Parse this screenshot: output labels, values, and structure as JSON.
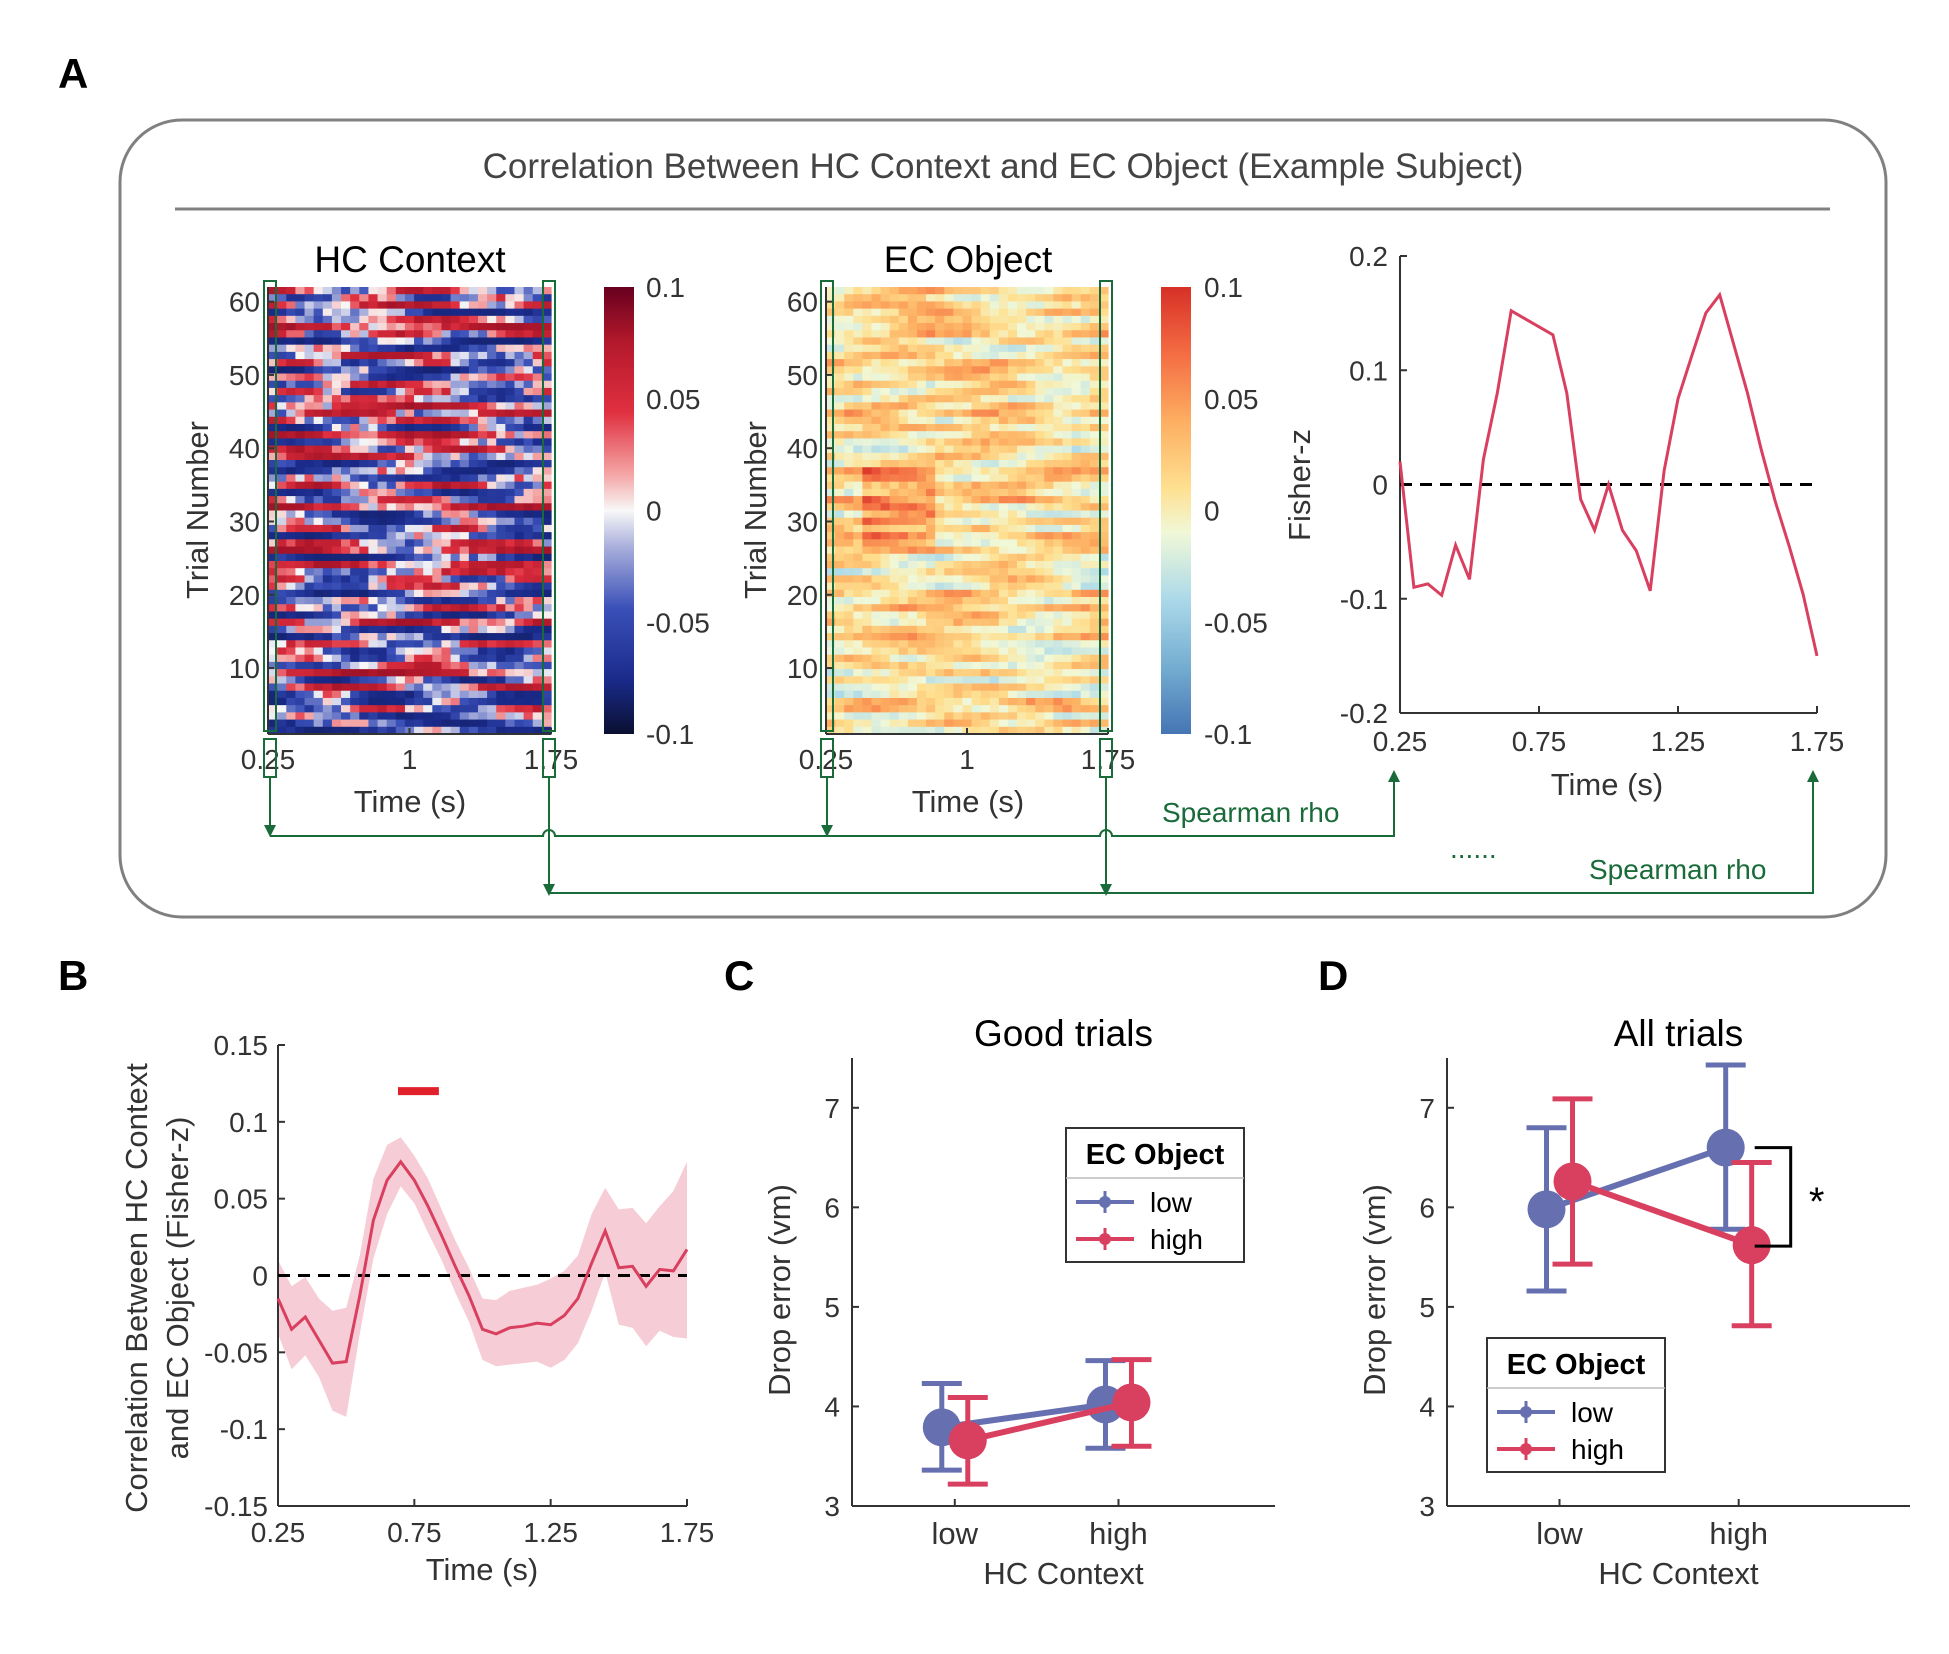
{
  "colors": {
    "blue": "#6670b0",
    "red": "#d94060",
    "shade": "#f6cdd6",
    "green": "#1a6b3a",
    "grey": "#777777",
    "sig": "#e0202a"
  },
  "panel_labels": {
    "a": "A",
    "b": "B",
    "c": "C",
    "d": "D"
  },
  "panel_a": {
    "box_title": "Correlation Between HC Context and EC Object (Example Subject)",
    "hc_title": "HC Context",
    "ec_title": "EC Object",
    "ylabel": "Trial Number",
    "xlabel": "Time (s)",
    "y_ticks": [
      "60",
      "50",
      "40",
      "30",
      "20",
      "10"
    ],
    "x_ticks": [
      "0.25",
      "1",
      "1.75"
    ],
    "colorbar_ticks": [
      "0.1",
      "0.05",
      "0",
      "-0.05",
      "-0.1"
    ],
    "spearman_label_1": "Spearman rho",
    "spearman_label_2": "Spearman rho",
    "ellipsis": "......"
  },
  "chart_data": [
    {
      "id": "A-right",
      "type": "line",
      "ylabel": "Fisher-z",
      "xlabel": "Time (s)",
      "xlim": [
        0.25,
        1.75
      ],
      "ylim": [
        -0.2,
        0.2
      ],
      "x_ticks": [
        "0.25",
        "0.75",
        "1.25",
        "1.75"
      ],
      "y_ticks": [
        "0.2",
        "0.1",
        "0",
        "-0.1",
        "-0.2"
      ],
      "x": [
        0.25,
        0.3,
        0.35,
        0.4,
        0.45,
        0.5,
        0.55,
        0.6,
        0.65,
        0.7,
        0.75,
        0.8,
        0.85,
        0.9,
        0.95,
        1.0,
        1.05,
        1.1,
        1.15,
        1.2,
        1.25,
        1.3,
        1.35,
        1.4,
        1.45,
        1.5,
        1.55,
        1.6,
        1.65,
        1.7,
        1.75
      ],
      "y": [
        0.02,
        -0.09,
        -0.087,
        -0.097,
        -0.053,
        -0.083,
        0.022,
        0.08,
        0.152,
        0.145,
        0.138,
        0.131,
        0.08,
        -0.013,
        -0.04,
        0.0,
        -0.04,
        -0.058,
        -0.093,
        0.012,
        0.075,
        0.113,
        0.15,
        0.166,
        0.123,
        0.08,
        0.03,
        -0.015,
        -0.054,
        -0.096,
        -0.15
      ],
      "zero_line": true
    },
    {
      "id": "B",
      "type": "line",
      "ylabel_line1": "Correlation Between HC Context",
      "ylabel_line2": "and EC Object (Fisher-z)",
      "xlabel": "Time (s)",
      "xlim": [
        0.25,
        1.75
      ],
      "ylim": [
        -0.15,
        0.15
      ],
      "x_ticks": [
        "0.25",
        "0.75",
        "1.25",
        "1.75"
      ],
      "y_ticks": [
        "0.15",
        "0.1",
        "0.05",
        "0",
        "-0.05",
        "-0.1",
        "-0.15"
      ],
      "x": [
        0.25,
        0.3,
        0.35,
        0.4,
        0.45,
        0.5,
        0.55,
        0.6,
        0.65,
        0.7,
        0.75,
        0.8,
        0.85,
        0.9,
        0.95,
        1.0,
        1.05,
        1.1,
        1.15,
        1.2,
        1.25,
        1.3,
        1.35,
        1.4,
        1.45,
        1.5,
        1.55,
        1.6,
        1.65,
        1.7,
        1.75
      ],
      "mean": [
        -0.015,
        -0.035,
        -0.027,
        -0.042,
        -0.057,
        -0.056,
        -0.013,
        0.036,
        0.062,
        0.074,
        0.062,
        0.045,
        0.026,
        0.006,
        -0.013,
        -0.035,
        -0.038,
        -0.034,
        -0.033,
        -0.031,
        -0.032,
        -0.026,
        -0.015,
        0.008,
        0.029,
        0.005,
        0.006,
        -0.007,
        0.004,
        0.003,
        0.017
      ],
      "upper": [
        0.01,
        -0.007,
        -0.001,
        -0.015,
        -0.023,
        -0.021,
        0.013,
        0.063,
        0.085,
        0.09,
        0.078,
        0.063,
        0.043,
        0.023,
        0.005,
        -0.015,
        -0.016,
        -0.01,
        -0.008,
        -0.006,
        -0.002,
        0.003,
        0.013,
        0.04,
        0.057,
        0.043,
        0.044,
        0.034,
        0.045,
        0.055,
        0.074
      ],
      "lower": [
        -0.038,
        -0.061,
        -0.052,
        -0.066,
        -0.088,
        -0.092,
        -0.038,
        0.011,
        0.04,
        0.058,
        0.047,
        0.028,
        0.01,
        -0.011,
        -0.03,
        -0.055,
        -0.059,
        -0.058,
        -0.057,
        -0.056,
        -0.06,
        -0.055,
        -0.044,
        -0.023,
        0.002,
        -0.032,
        -0.034,
        -0.046,
        -0.036,
        -0.04,
        -0.041
      ],
      "significance": {
        "x_start": 0.69,
        "x_end": 0.84,
        "y": 0.12
      },
      "zero_line": true
    },
    {
      "id": "C",
      "type": "line",
      "title": "Good trials",
      "xlabel": "HC Context",
      "ylabel": "Drop error (vm)",
      "categories": [
        "low",
        "high"
      ],
      "ylim": [
        3,
        7.5
      ],
      "y_ticks": [
        "7",
        "6",
        "5",
        "4",
        "3"
      ],
      "legend_title": "EC Object",
      "legend_position": "right",
      "series": [
        {
          "name": "low",
          "values": [
            3.79,
            4.02
          ],
          "err_low": [
            3.36,
            3.58
          ],
          "err_high": [
            4.23,
            4.46
          ]
        },
        {
          "name": "high",
          "values": [
            3.66,
            4.04
          ],
          "err_low": [
            3.22,
            3.6
          ],
          "err_high": [
            4.09,
            4.47
          ]
        }
      ]
    },
    {
      "id": "D",
      "type": "line",
      "title": "All trials",
      "xlabel": "HC Context",
      "ylabel": "Drop error (vm)",
      "categories": [
        "low",
        "high"
      ],
      "ylim": [
        3,
        7.5
      ],
      "y_ticks": [
        "7",
        "6",
        "5",
        "4",
        "3"
      ],
      "legend_title": "EC Object",
      "legend_position": "lower-left",
      "series": [
        {
          "name": "low",
          "values": [
            5.98,
            6.6
          ],
          "err_low": [
            5.16,
            5.78
          ],
          "err_high": [
            6.8,
            7.43
          ]
        },
        {
          "name": "high",
          "values": [
            6.26,
            5.62
          ],
          "err_low": [
            5.43,
            4.81
          ],
          "err_high": [
            7.09,
            6.45
          ]
        }
      ],
      "annotation": "*"
    }
  ]
}
